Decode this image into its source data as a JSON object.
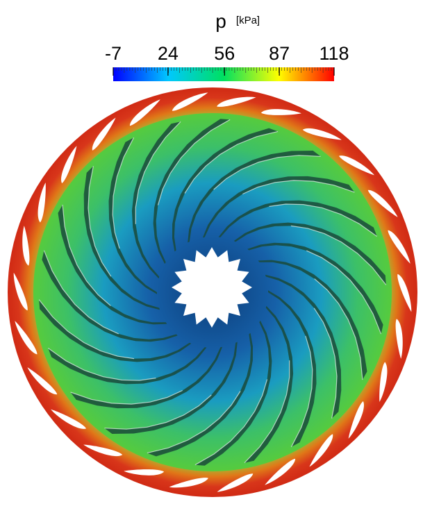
{
  "colorbar": {
    "label": "p",
    "unit": "[kPa]",
    "range": [
      -7,
      118
    ],
    "ticks": [
      -7,
      24,
      56,
      87,
      118
    ],
    "colors": [
      "#0000ff",
      "#00c8ff",
      "#00e060",
      "#ffff00",
      "#ff0000"
    ]
  }
}
